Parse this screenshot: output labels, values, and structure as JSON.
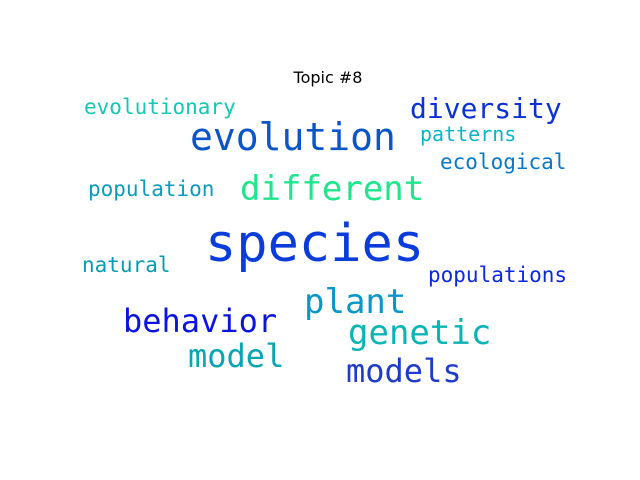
{
  "title": "Topic #8",
  "words": {
    "species": {
      "text": "species",
      "color": "#0a3cdc"
    },
    "evolution": {
      "text": "evolution",
      "color": "#0a55c8"
    },
    "different": {
      "text": "different",
      "color": "#1ee68c"
    },
    "diversity": {
      "text": "diversity",
      "color": "#0a32d2"
    },
    "plant": {
      "text": "plant",
      "color": "#0a96c8"
    },
    "behavior": {
      "text": "behavior",
      "color": "#0a14dc"
    },
    "genetic": {
      "text": "genetic",
      "color": "#0ab4b4"
    },
    "model": {
      "text": "model",
      "color": "#0aa5b4"
    },
    "models": {
      "text": "models",
      "color": "#1e3cc8"
    },
    "evolutionary": {
      "text": "evolutionary",
      "color": "#14c8b4"
    },
    "patterns": {
      "text": "patterns",
      "color": "#0ab4c8"
    },
    "ecological": {
      "text": "ecological",
      "color": "#0a78c8"
    },
    "population": {
      "text": "population",
      "color": "#0a9bbe"
    },
    "natural": {
      "text": "natural",
      "color": "#0a9bb4"
    },
    "populations": {
      "text": "populations",
      "color": "#0a28dc"
    }
  }
}
